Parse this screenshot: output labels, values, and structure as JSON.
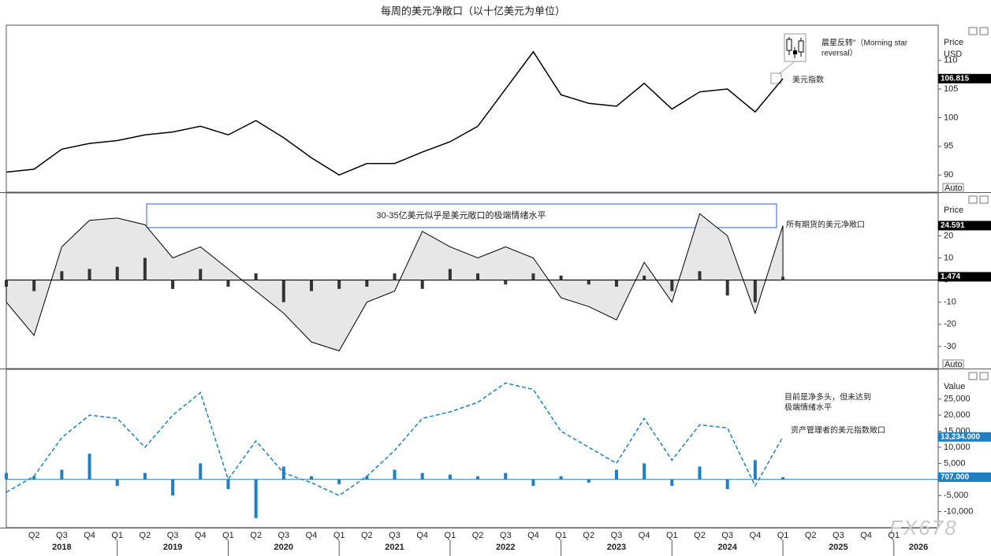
{
  "title": "每周的美元净敞口（以十亿美元为单位）",
  "watermark": "FX678",
  "x_axis": {
    "quarters": [
      "Q2",
      "Q3",
      "Q4",
      "Q1",
      "Q2",
      "Q3",
      "Q4",
      "Q1",
      "Q2",
      "Q3",
      "Q4",
      "Q1",
      "Q2",
      "Q3",
      "Q4",
      "Q1",
      "Q2",
      "Q3",
      "Q4",
      "Q1",
      "Q2",
      "Q3",
      "Q4",
      "Q1",
      "Q2",
      "Q3",
      "Q4",
      "Q1",
      "Q2",
      "Q3",
      "Q4",
      "Q1"
    ],
    "years": [
      "2018",
      "2019",
      "2020",
      "2021",
      "2022",
      "2023",
      "2024",
      "2025",
      "2026"
    ]
  },
  "chart_data": [
    {
      "type": "combo",
      "y_axis_title": [
        "Price",
        "USD"
      ],
      "scale_button": "Auto",
      "x": [
        "2018 Q1",
        "2018 Q2",
        "2018 Q3",
        "2018 Q4",
        "2019 Q1",
        "2019 Q2",
        "2019 Q3",
        "2019 Q4",
        "2020 Q1",
        "2020 Q2",
        "2020 Q3",
        "2020 Q4",
        "2021 Q1",
        "2021 Q2",
        "2021 Q3",
        "2021 Q4",
        "2022 Q1",
        "2022 Q2",
        "2022 Q3",
        "2022 Q4",
        "2023 Q1",
        "2023 Q2",
        "2023 Q3",
        "2023 Q4",
        "2024 Q1",
        "2024 Q2",
        "2024 Q3",
        "2024 Q4",
        "2025 Q1"
      ],
      "ylim": [
        87,
        116
      ],
      "yticks": [
        90,
        95,
        100,
        105,
        110
      ],
      "series": [
        {
          "name": "美元指数",
          "type": "line",
          "color": "#000000",
          "values": [
            90.5,
            91,
            94.5,
            95.5,
            96,
            97,
            97.5,
            98.5,
            97,
            99.5,
            96.5,
            93,
            90,
            92,
            92,
            94,
            95.8,
            98.5,
            105,
            111.5,
            104,
            102.5,
            102,
            106,
            101.5,
            104.5,
            105,
            101,
            106.815
          ]
        }
      ],
      "annotations": [
        {
          "lines": [
            "晨星反转\"（Morning star",
            "reversal）"
          ]
        }
      ]
    },
    {
      "type": "combo",
      "y_axis_title": [
        "Price"
      ],
      "scale_button": "Auto",
      "x": [
        "2018 Q1",
        "2018 Q2",
        "2018 Q3",
        "2018 Q4",
        "2019 Q1",
        "2019 Q2",
        "2019 Q3",
        "2019 Q4",
        "2020 Q1",
        "2020 Q2",
        "2020 Q3",
        "2020 Q4",
        "2021 Q1",
        "2021 Q2",
        "2021 Q3",
        "2021 Q4",
        "2022 Q1",
        "2022 Q2",
        "2022 Q3",
        "2022 Q4",
        "2023 Q1",
        "2023 Q2",
        "2023 Q3",
        "2023 Q4",
        "2024 Q1",
        "2024 Q2",
        "2024 Q3",
        "2024 Q4",
        "2025 Q1"
      ],
      "ylim": [
        -40,
        39
      ],
      "yticks": [
        -30,
        -20,
        -10,
        0,
        10,
        20
      ],
      "series": [
        {
          "name": "所有期货的美元净敞口",
          "type": "area",
          "color": "#000000",
          "fill": "#e4e4e4",
          "values": [
            -10,
            -25,
            15,
            27,
            28,
            25,
            10,
            15,
            5,
            -5,
            -15,
            -28,
            -32,
            -10,
            -5,
            22,
            15,
            10,
            15,
            10,
            -8,
            -12,
            -18,
            8,
            -10,
            30,
            20,
            -15,
            24.591
          ]
        },
        {
          "type": "bar",
          "color": "#333333",
          "values": [
            -3,
            -5,
            4,
            5,
            6,
            10,
            -4,
            5,
            -3,
            3,
            -10,
            -5,
            -4,
            -3,
            3,
            -4,
            5,
            3,
            -2,
            3,
            2,
            -2,
            -3,
            2,
            -5,
            4,
            -7,
            -10,
            1.474
          ]
        }
      ],
      "annotations": [
        {
          "lines": [
            "30-35亿美元似乎是美元敞口的极端情绪水平"
          ]
        }
      ]
    },
    {
      "type": "combo",
      "y_axis_title": [
        "Value"
      ],
      "x": [
        "2018 Q1",
        "2018 Q2",
        "2018 Q3",
        "2018 Q4",
        "2019 Q1",
        "2019 Q2",
        "2019 Q3",
        "2019 Q4",
        "2020 Q1",
        "2020 Q2",
        "2020 Q3",
        "2020 Q4",
        "2021 Q1",
        "2021 Q2",
        "2021 Q3",
        "2021 Q4",
        "2022 Q1",
        "2022 Q2",
        "2022 Q3",
        "2022 Q4",
        "2023 Q1",
        "2023 Q2",
        "2023 Q3",
        "2023 Q4",
        "2024 Q1",
        "2024 Q2",
        "2024 Q3",
        "2024 Q4",
        "2025 Q1"
      ],
      "ylim": [
        -15000,
        34000
      ],
      "yticks": [
        {
          "value": -10000,
          "label": "-10,000"
        },
        {
          "value": -5000,
          "label": "-5,000"
        },
        0,
        {
          "value": 5000,
          "label": "5,000"
        },
        {
          "value": 10000,
          "label": "10,000"
        },
        {
          "value": 15000,
          "label": "15,000"
        },
        {
          "value": 20000,
          "label": "20,000"
        },
        {
          "value": 25000,
          "label": "25,000"
        }
      ],
      "series": [
        {
          "name": "资产管理者的美元指数敞口",
          "type": "line",
          "dashed": true,
          "color": "#1f7fc0",
          "values": [
            -4000,
            1000,
            13000,
            20000,
            19000,
            10000,
            20000,
            27000,
            0,
            12000,
            2000,
            -1000,
            -5000,
            1000,
            9000,
            19000,
            21000,
            24000,
            30000,
            28000,
            15000,
            10000,
            5000,
            19000,
            6000,
            17000,
            16000,
            -2000,
            13234
          ],
          "value_labels": [
            null,
            null,
            null,
            null,
            null,
            null,
            null,
            null,
            null,
            null,
            null,
            null,
            null,
            null,
            null,
            null,
            null,
            null,
            null,
            null,
            null,
            null,
            null,
            null,
            null,
            null,
            null,
            null,
            "13,234.000"
          ]
        },
        {
          "type": "bar",
          "color": "#1f7fc0",
          "values": [
            2000,
            1000,
            3000,
            8000,
            -2000,
            2000,
            -5000,
            5000,
            -3000,
            -12000,
            4000,
            1000,
            -1500,
            1000,
            3000,
            2000,
            1500,
            1000,
            2000,
            -2000,
            1000,
            -1000,
            3000,
            5000,
            -2000,
            4000,
            -3000,
            6000,
            707
          ],
          "value_labels": [
            null,
            null,
            null,
            null,
            null,
            null,
            null,
            null,
            null,
            null,
            null,
            null,
            null,
            null,
            null,
            null,
            null,
            null,
            null,
            null,
            null,
            null,
            null,
            null,
            null,
            null,
            null,
            null,
            "707.000"
          ]
        }
      ],
      "annotations": [
        {
          "lines": [
            "目前是净多头，但未达到",
            "极端情绪水平"
          ]
        }
      ]
    }
  ]
}
